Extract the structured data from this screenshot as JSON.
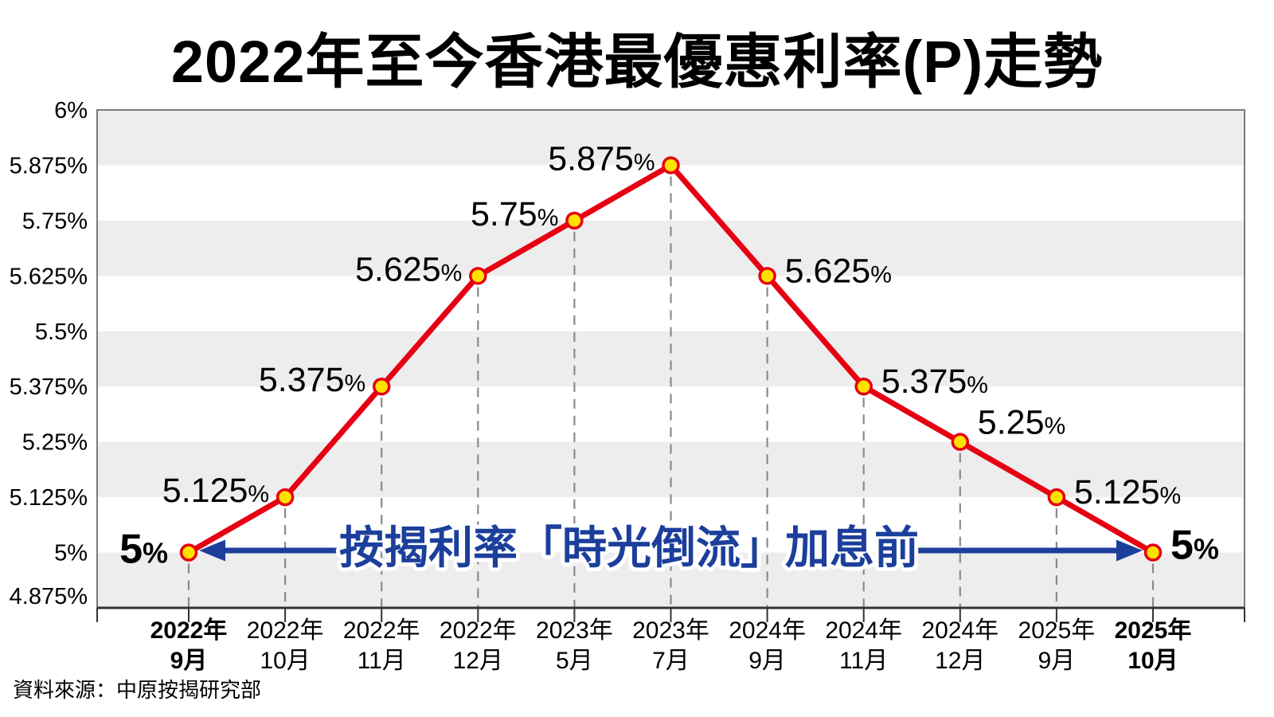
{
  "chart_data": {
    "type": "line",
    "title": "2022年至今香港最優惠利率(P)走勢",
    "source": "資料來源：中原按揭研究部",
    "categories": [
      [
        "2022年",
        "9月"
      ],
      [
        "2022年",
        "10月"
      ],
      [
        "2022年",
        "11月"
      ],
      [
        "2022年",
        "12月"
      ],
      [
        "2023年",
        "5月"
      ],
      [
        "2023年",
        "7月"
      ],
      [
        "2024年",
        "9月"
      ],
      [
        "2024年",
        "11月"
      ],
      [
        "2024年",
        "12月"
      ],
      [
        "2025年",
        "9月"
      ],
      [
        "2025年",
        "10月"
      ]
    ],
    "values": [
      5,
      5.125,
      5.375,
      5.625,
      5.75,
      5.875,
      5.625,
      5.375,
      5.25,
      5.125,
      5
    ],
    "point_labels": [
      "5%",
      "5.125%",
      "5.375%",
      "5.625%",
      "5.75%",
      "5.875%",
      "5.625%",
      "5.375%",
      "5.25%",
      "5.125%",
      "5%"
    ],
    "emphasized_points": [
      0,
      10
    ],
    "label_placement": [
      "left",
      "above-left",
      "above-left",
      "above-left",
      "above-left",
      "above-left",
      "right",
      "right",
      "above-right",
      "right",
      "right"
    ],
    "y_ticks": [
      {
        "v": 6,
        "label": "6%"
      },
      {
        "v": 5.875,
        "label": "5.875%"
      },
      {
        "v": 5.75,
        "label": "5.75%"
      },
      {
        "v": 5.625,
        "label": "5.625%"
      },
      {
        "v": 5.5,
        "label": "5.5%"
      },
      {
        "v": 5.375,
        "label": "5.375%"
      },
      {
        "v": 5.25,
        "label": "5.25%"
      },
      {
        "v": 5.125,
        "label": "5.125%"
      },
      {
        "v": 5,
        "label": "5%"
      },
      {
        "v": 4.875,
        "label": "4.875%"
      }
    ],
    "ylim": [
      4.875,
      6
    ],
    "xlabel": "",
    "ylabel": "",
    "grid": "alternating-horizontal-bands",
    "legend": "none",
    "annotation": {
      "text": "按揭利率「時光倒流」加息前",
      "style": "blue arrows pointing from center text to first and last 5% data points"
    },
    "colors": {
      "line": "#e60012",
      "marker_fill": "#ffe100",
      "marker_stroke": "#e60012",
      "annotation_blue": "#1c3f9c",
      "band_gray": "#ededed",
      "dashed_guide": "#8a8a8a",
      "axis": "#333333",
      "frame": "#7a7a7a",
      "label_text": "#000000",
      "background": "#ffffff"
    }
  }
}
